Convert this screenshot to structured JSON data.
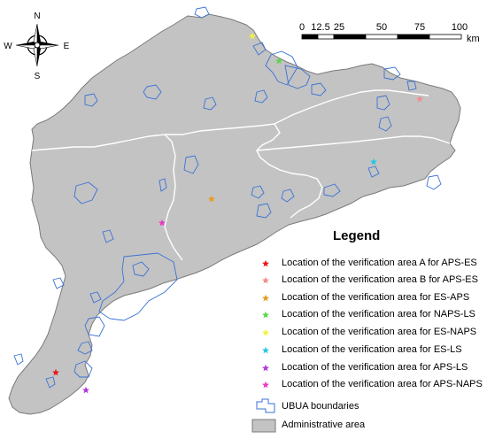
{
  "compass": {
    "north": "N",
    "south": "S",
    "east": "E",
    "west": "W"
  },
  "scale_bar": {
    "ticks": [
      "0",
      "12.5",
      "25",
      "50",
      "75",
      "100"
    ],
    "unit": "km"
  },
  "legend": {
    "title": "Legend",
    "items": [
      {
        "label": "Location of the verification area A  for APS-ES",
        "color": "#e8141c",
        "symbol": "star"
      },
      {
        "label": "Location of the verification area B  for APS-ES",
        "color": "#f28c8c",
        "symbol": "star"
      },
      {
        "label": "Location of the verification area  for ES-APS",
        "color": "#e69b1e",
        "symbol": "star"
      },
      {
        "label": "Location of the verification area  for NAPS-LS",
        "color": "#5ad64a",
        "symbol": "star"
      },
      {
        "label": "Location of the verification area  for ES-NAPS",
        "color": "#f2f23c",
        "symbol": "star"
      },
      {
        "label": "Location of the verification area  for ES-LS",
        "color": "#27c6e6",
        "symbol": "star"
      },
      {
        "label": "Location of the verification area  for APS-LS",
        "color": "#b03ad6",
        "symbol": "star"
      },
      {
        "label": "Location of the verification area  for APS-NAPS",
        "color": "#e639c8",
        "symbol": "star"
      },
      {
        "label": "UBUA boundaries",
        "color": "#3a72d6",
        "symbol": "outline"
      },
      {
        "label": "Administrative area",
        "color": "#c3c3c3",
        "symbol": "fill"
      }
    ]
  },
  "colors": {
    "admin_fill": "#c3c3c3",
    "admin_stroke": "#7a7a7a",
    "ubua_stroke": "#3a72d6"
  }
}
